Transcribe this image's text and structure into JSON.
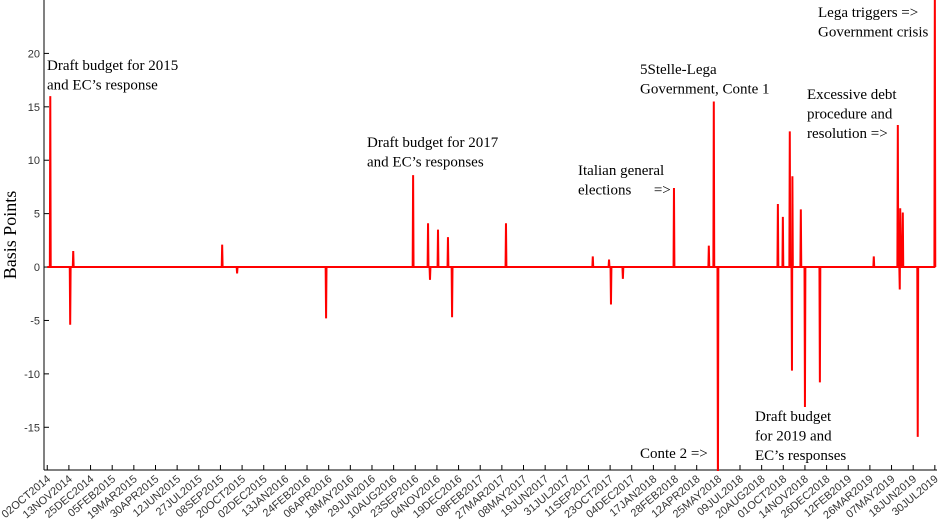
{
  "chart_data": {
    "type": "line",
    "y_label": "Basis Points",
    "color": "#ff0000",
    "ylim": [
      -19,
      25
    ],
    "yticks": [
      -15,
      -10,
      -5,
      0,
      5,
      10,
      15,
      20
    ],
    "xlim": [
      -0.15,
      41.1
    ],
    "xticks": [
      {
        "value": 0,
        "label": "02OCT2014"
      },
      {
        "value": 1,
        "label": "13NOV2014"
      },
      {
        "value": 2,
        "label": "25DEC2014"
      },
      {
        "value": 3,
        "label": "05FEB2015"
      },
      {
        "value": 4,
        "label": "19MAR2015"
      },
      {
        "value": 5,
        "label": "30APR2015"
      },
      {
        "value": 6,
        "label": "12JUN2015"
      },
      {
        "value": 7,
        "label": "27JUL2015"
      },
      {
        "value": 8,
        "label": "08SEP2015"
      },
      {
        "value": 9,
        "label": "20OCT2015"
      },
      {
        "value": 10,
        "label": "02DEC2015"
      },
      {
        "value": 11,
        "label": "13JAN2016"
      },
      {
        "value": 12,
        "label": "24FEB2016"
      },
      {
        "value": 13,
        "label": "06APR2016"
      },
      {
        "value": 14,
        "label": "18MAY2016"
      },
      {
        "value": 15,
        "label": "29JUN2016"
      },
      {
        "value": 16,
        "label": "10AUG2016"
      },
      {
        "value": 17,
        "label": "23SEP2016"
      },
      {
        "value": 18,
        "label": "04NOV2016"
      },
      {
        "value": 19,
        "label": "19DEC2016"
      },
      {
        "value": 20,
        "label": "08FEB2017"
      },
      {
        "value": 21,
        "label": "27MAR2017"
      },
      {
        "value": 22,
        "label": "08MAY2017"
      },
      {
        "value": 23,
        "label": "19JUN2017"
      },
      {
        "value": 24,
        "label": "31JUL2017"
      },
      {
        "value": 25,
        "label": "11SEP2017"
      },
      {
        "value": 26,
        "label": "23OCT2017"
      },
      {
        "value": 27,
        "label": "04DEC2017"
      },
      {
        "value": 28,
        "label": "17JAN2018"
      },
      {
        "value": 29,
        "label": "28FEB2018"
      },
      {
        "value": 30,
        "label": "12APR2018"
      },
      {
        "value": 31,
        "label": "25MAY2018"
      },
      {
        "value": 32,
        "label": "09JUL2018"
      },
      {
        "value": 33,
        "label": "20AUG2018"
      },
      {
        "value": 34,
        "label": "01OCT2018"
      },
      {
        "value": 35,
        "label": "14NOV2018"
      },
      {
        "value": 36,
        "label": "26DEC2018"
      },
      {
        "value": 37,
        "label": "12FEB2019"
      },
      {
        "value": 38,
        "label": "26MAR2019"
      },
      {
        "value": 39,
        "label": "07MAY2019"
      },
      {
        "value": 40,
        "label": "18JUN2019"
      },
      {
        "value": 41,
        "label": "30JUL2019"
      }
    ],
    "x": [
      0,
      0.12,
      0.14,
      0.16,
      1.04,
      1.06,
      1.08,
      1.18,
      1.2,
      1.22,
      8.06,
      8.08,
      8.1,
      8.75,
      8.77,
      8.79,
      12.86,
      12.88,
      12.9,
      16.88,
      16.9,
      16.92,
      17.57,
      17.59,
      17.61,
      17.66,
      17.68,
      17.7,
      18.03,
      18.05,
      18.07,
      18.49,
      18.51,
      18.53,
      18.68,
      18.7,
      18.72,
      21.17,
      21.19,
      21.21,
      25.18,
      25.2,
      25.22,
      25.93,
      25.95,
      25.97,
      26.02,
      26.04,
      26.06,
      26.57,
      26.59,
      26.61,
      28.93,
      28.95,
      28.97,
      30.54,
      30.56,
      30.58,
      30.77,
      30.79,
      30.81,
      30.96,
      30.98,
      31.0,
      33.73,
      33.75,
      33.77,
      33.96,
      33.98,
      34.0,
      34.28,
      34.3,
      34.32,
      34.38,
      34.4,
      34.42,
      34.44,
      34.79,
      34.81,
      34.83,
      34.98,
      35.0,
      35.02,
      35.67,
      35.69,
      35.71,
      38.16,
      38.18,
      38.2,
      39.27,
      39.29,
      39.31,
      39.36,
      39.38,
      39.4,
      39.44,
      39.5,
      39.52,
      39.54,
      40.19,
      40.21,
      40.23,
      40.98,
      41.0,
      41.02
    ],
    "values": [
      0,
      0,
      16,
      0,
      0,
      -5.4,
      0,
      0,
      1.5,
      0,
      0,
      2.1,
      0,
      0,
      -0.6,
      0,
      0,
      -4.8,
      0,
      0,
      8.6,
      0,
      0,
      4.1,
      0,
      0,
      -1.2,
      0,
      0,
      3.5,
      0,
      0,
      2.8,
      0,
      0,
      -4.7,
      0,
      0,
      4.1,
      0,
      0,
      1.0,
      0,
      0,
      0.7,
      0,
      0,
      -3.5,
      0,
      0,
      -1.1,
      0,
      0,
      7.4,
      0,
      0,
      2.0,
      0,
      0,
      15.5,
      0,
      0,
      -21,
      0,
      0,
      5.9,
      0,
      0,
      4.7,
      0,
      0,
      12.7,
      0,
      0,
      -9.7,
      8.5,
      0,
      0,
      5.4,
      0,
      0,
      -13.1,
      0,
      0,
      -10.8,
      0,
      0,
      1.0,
      0,
      0,
      13.3,
      0,
      0,
      -2.1,
      5.5,
      0,
      0,
      5.1,
      0,
      0,
      -15.9,
      0,
      0,
      26,
      0
    ],
    "annotations": [
      {
        "lines": [
          "Draft budget for 2015",
          "and EC’s response"
        ]
      },
      {
        "lines": [
          "Draft budget for 2017",
          "and EC’s responses"
        ]
      },
      {
        "lines": [
          "Italian general",
          "elections      =>"
        ]
      },
      {
        "lines": [
          "5Stelle-Lega",
          "Government, Conte 1"
        ]
      },
      {
        "lines": [
          "Conte 2 =>"
        ]
      },
      {
        "lines": [
          "Draft budget",
          "for 2019 and",
          "EC’s responses"
        ]
      },
      {
        "lines": [
          "Excessive debt",
          "procedure and",
          "resolution =>"
        ]
      },
      {
        "lines": [
          "Lega triggers =>",
          "Government crisis"
        ]
      }
    ]
  }
}
